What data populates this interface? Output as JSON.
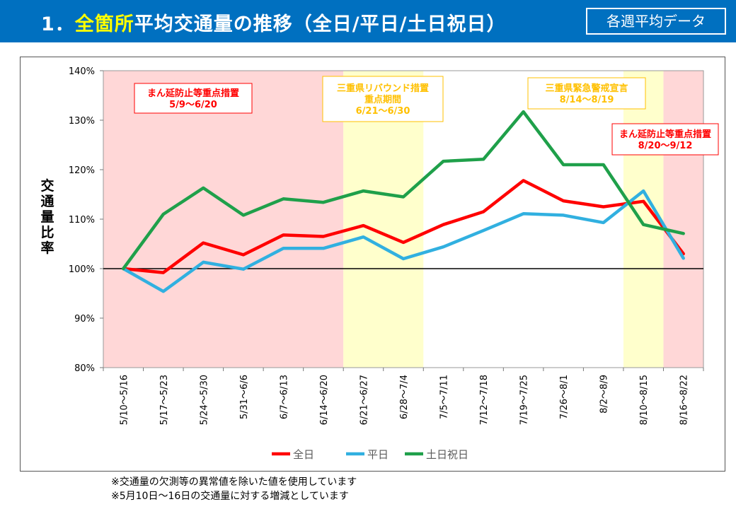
{
  "header": {
    "title_prefix": "1．",
    "title_highlight": "全箇所",
    "title_suffix": "平均交通量の推移（全日/平日/土日祝日）",
    "badge": "各週平均データ"
  },
  "notes": [
    "※交通量の欠測等の異常値を除いた値を使用しています",
    "※5月10日～16日の交通量に対する増減としています"
  ],
  "colors": {
    "header_bg": "#0070c0",
    "title_highlight": "#ffff00",
    "pink_band": "#ffd7d7",
    "yellow_band": "#ffffcc",
    "red_series": "#ff0000",
    "blue_series": "#31b0e0",
    "green_series": "#1fa04a"
  },
  "chart_data": {
    "type": "line",
    "ylabel": "交通量比率",
    "ylim": [
      80,
      140
    ],
    "yticks": [
      "80%",
      "90%",
      "100%",
      "110%",
      "120%",
      "130%",
      "140%"
    ],
    "reference_line": 100,
    "categories": [
      "5/10～5/16",
      "5/17～5/23",
      "5/24～5/30",
      "5/31～6/6",
      "6/7～6/13",
      "6/14～6/20",
      "6/21～6/27",
      "6/28～7/4",
      "7/5～7/11",
      "7/12～7/18",
      "7/19～7/25",
      "7/26～8/1",
      "8/2～8/9",
      "8/10～8/15",
      "8/16～8/22"
    ],
    "series": [
      {
        "name": "全日",
        "color": "#ff0000",
        "values": [
          100.0,
          99.2,
          105.2,
          102.8,
          106.8,
          106.5,
          108.7,
          105.3,
          108.9,
          111.5,
          117.8,
          113.7,
          112.5,
          113.6,
          103.0
        ]
      },
      {
        "name": "平日",
        "color": "#31b0e0",
        "values": [
          100.0,
          95.4,
          101.3,
          99.9,
          104.1,
          104.1,
          106.4,
          102.0,
          104.4,
          107.7,
          111.1,
          110.8,
          109.3,
          115.7,
          102.1
        ]
      },
      {
        "name": "土日祝日",
        "color": "#1fa04a",
        "values": [
          100.0,
          111.0,
          116.3,
          110.8,
          114.1,
          113.4,
          115.7,
          114.5,
          121.7,
          122.1,
          131.7,
          121.0,
          121.0,
          108.9,
          107.1
        ]
      }
    ],
    "bands": [
      {
        "from": "5/10～5/16",
        "to": "6/14～6/20",
        "color": "#ffd7d7"
      },
      {
        "from": "6/21～6/27",
        "to": "6/28～7/4",
        "color": "#ffffcc"
      },
      {
        "from": "8/10～8/15",
        "to": "8/10～8/15",
        "color": "#ffffcc"
      },
      {
        "from": "8/16～8/22",
        "to": "8/16～8/22",
        "color": "#ffd7d7"
      }
    ],
    "annotations": [
      {
        "lines": [
          "まん延防止等重点措置",
          "5/9～6/20"
        ],
        "color": "#ff0000",
        "border": "#ff0000"
      },
      {
        "lines": [
          "三重県リバウンド措置",
          "重点期間",
          "6/21～6/30"
        ],
        "color": "#ffc000",
        "border": "#ffc000"
      },
      {
        "lines": [
          "三重県緊急警戒宣言",
          "8/14～8/19"
        ],
        "color": "#ffc000",
        "border": "#ffc000"
      },
      {
        "lines": [
          "まん延防止等重点措置",
          "8/20～9/12"
        ],
        "color": "#ff0000",
        "border": "#ff0000"
      }
    ],
    "legend_position": "bottom"
  }
}
